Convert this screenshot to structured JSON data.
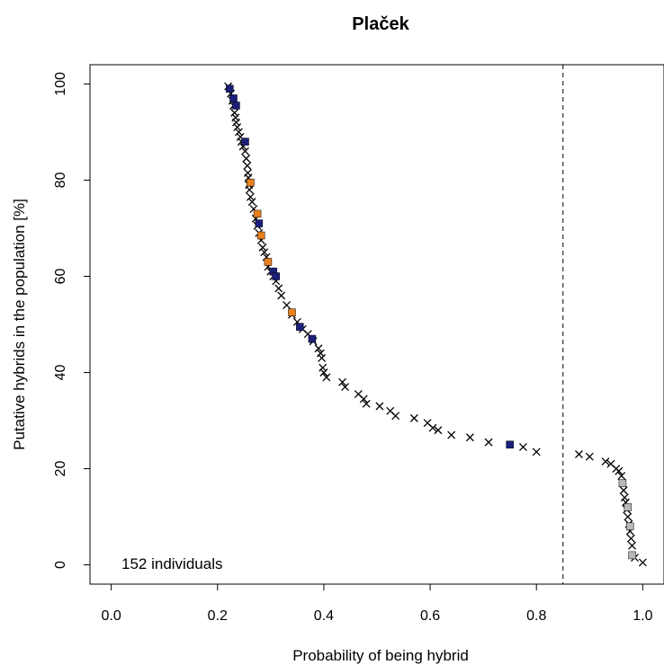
{
  "chart_data": {
    "type": "scatter",
    "title": "Plaček",
    "xlabel": "Probability of being hybrid",
    "ylabel": "Putative hybrids in the population [%]",
    "xlim": [
      -0.04,
      1.04
    ],
    "ylim": [
      -4,
      104
    ],
    "x_ticks": [
      0.0,
      0.2,
      0.4,
      0.6,
      0.8,
      1.0
    ],
    "x_tick_labels": [
      "0.0",
      "0.2",
      "0.4",
      "0.6",
      "0.8",
      "1.0"
    ],
    "y_ticks": [
      0,
      20,
      40,
      60,
      80,
      100
    ],
    "y_tick_labels": [
      "0",
      "20",
      "40",
      "60",
      "80",
      "100"
    ],
    "threshold_line": {
      "x": 0.85,
      "style": "dashed"
    },
    "annotation": "152 individuals",
    "colors": {
      "cross": "#000000",
      "blue": "#1a1f7a",
      "orange": "#e8801e",
      "gray": "#b8b8b8"
    },
    "series": [
      {
        "marker": "cross",
        "x": [
          0.22,
          0.225,
          0.228,
          0.23,
          0.232,
          0.234,
          0.235,
          0.237,
          0.24,
          0.243,
          0.245,
          0.248,
          0.252,
          0.254,
          0.256,
          0.257,
          0.258,
          0.259,
          0.26,
          0.262,
          0.265,
          0.268,
          0.272,
          0.275,
          0.278,
          0.282,
          0.285,
          0.288,
          0.292,
          0.295,
          0.3,
          0.305,
          0.31,
          0.315,
          0.32,
          0.33,
          0.34,
          0.35,
          0.36,
          0.37,
          0.38,
          0.39,
          0.394,
          0.396,
          0.398,
          0.4,
          0.405,
          0.435,
          0.44,
          0.465,
          0.475,
          0.48,
          0.505,
          0.525,
          0.535,
          0.57,
          0.595,
          0.605,
          0.615,
          0.64,
          0.675,
          0.71,
          0.775,
          0.8,
          0.88,
          0.9,
          0.93,
          0.94,
          0.95,
          0.955,
          0.96,
          0.962,
          0.964,
          0.966,
          0.968,
          0.97,
          0.972,
          0.974,
          0.976,
          0.978,
          0.98,
          0.985,
          1.0
        ],
        "y": [
          99.5,
          98.0,
          96.5,
          95.5,
          94.0,
          93.0,
          92.0,
          91.0,
          90.0,
          89.0,
          88.0,
          87.0,
          86.0,
          84.5,
          83.0,
          81.5,
          80.5,
          79.0,
          78.0,
          76.5,
          75.5,
          74.0,
          72.0,
          70.5,
          69.0,
          67.5,
          66.0,
          65.0,
          64.0,
          62.0,
          61.0,
          60.0,
          59.0,
          57.5,
          56.0,
          54.0,
          52.0,
          50.5,
          49.0,
          48.0,
          46.5,
          45.0,
          44.0,
          43.0,
          41.0,
          40.0,
          39.0,
          38.0,
          37.0,
          35.5,
          34.5,
          33.5,
          33.0,
          32.0,
          31.0,
          30.5,
          29.5,
          28.5,
          28.0,
          27.0,
          26.5,
          25.5,
          24.5,
          23.5,
          23.0,
          22.5,
          21.5,
          21.0,
          20.0,
          19.5,
          18.5,
          17.0,
          15.5,
          14.0,
          13.0,
          11.5,
          10.0,
          8.5,
          7.0,
          5.5,
          4.0,
          1.5,
          0.5
        ]
      },
      {
        "marker": "blue",
        "x": [
          0.223,
          0.23,
          0.235,
          0.252,
          0.278,
          0.305,
          0.31,
          0.355,
          0.378,
          0.75
        ],
        "y": [
          99.0,
          97.0,
          95.5,
          88.0,
          71.0,
          61.0,
          60.0,
          49.5,
          47.0,
          25.0
        ]
      },
      {
        "marker": "orange",
        "x": [
          0.262,
          0.275,
          0.282,
          0.295,
          0.34
        ],
        "y": [
          79.5,
          73.0,
          68.5,
          63.0,
          52.5
        ]
      },
      {
        "marker": "gray",
        "x": [
          0.962,
          0.972,
          0.976,
          0.98
        ],
        "y": [
          17.0,
          12.0,
          8.0,
          2.0
        ]
      }
    ]
  }
}
